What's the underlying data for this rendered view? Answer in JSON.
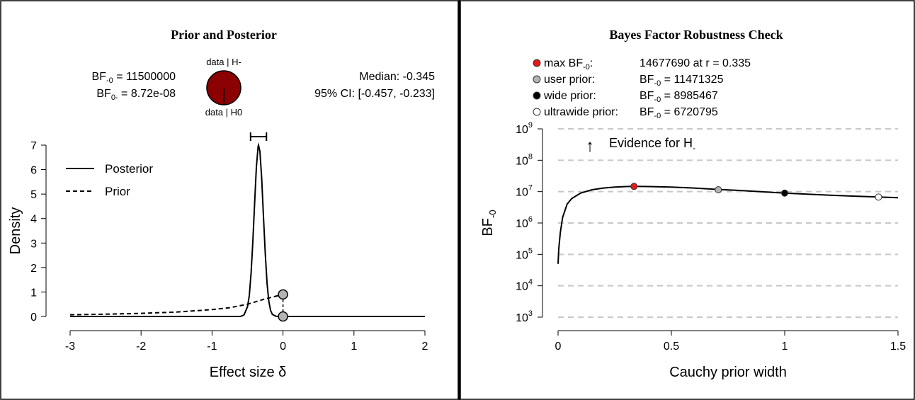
{
  "colors": {
    "posterior_line": "#000000",
    "pie_fill": "#8b0000",
    "max_point": "#e31a1c",
    "user_point": "#b3b3b3",
    "wide_point": "#000000",
    "ultrawide_point": "#ffffff",
    "gridline": "#c8c8c8"
  },
  "left_panel": {
    "title": "Prior and Posterior",
    "bf_line1_prefix": "BF",
    "bf_line1_sub": "-0",
    "bf_line1_value": " = 11500000",
    "bf_line2_prefix": "BF",
    "bf_line2_sub": "0-",
    "bf_line2_value": " = 8.72e-08",
    "pie_top_label": "data | H-",
    "pie_bottom_label": "data | H0",
    "median_text": "Median: -0.345",
    "ci_text": "95% CI: [-0.457, -0.233]",
    "legend_posterior": "Posterior",
    "legend_prior": "Prior"
  },
  "right_panel": {
    "title": "Bayes Factor Robustness Check",
    "legend": [
      {
        "label": "max BF",
        "sub": "-0",
        "colon": ":",
        "value": "14677690 at r = 0.335",
        "value_prefix": "",
        "value_sub": ""
      },
      {
        "label": "user prior:",
        "sub": "",
        "colon": "",
        "value": " = 11471325",
        "value_prefix": "BF",
        "value_sub": "-0"
      },
      {
        "label": "wide prior:",
        "sub": "",
        "colon": "",
        "value": " = 8985467",
        "value_prefix": "BF",
        "value_sub": "-0"
      },
      {
        "label": "ultrawide prior:",
        "sub": "",
        "colon": "",
        "value": " = 6720795",
        "value_prefix": "BF",
        "value_sub": "-0"
      }
    ],
    "evidence_arrow": "↑",
    "evidence_text": "Evidence for H",
    "evidence_sub": "-"
  },
  "chart_data": [
    {
      "type": "line",
      "title": "Prior and Posterior",
      "xlabel": "Effect size δ",
      "ylabel": "Density",
      "xlim": [
        -3,
        2
      ],
      "ylim": [
        0,
        7
      ],
      "xticks": [
        -3,
        -2,
        -1,
        0,
        1,
        2
      ],
      "yticks": [
        0,
        1,
        2,
        3,
        4,
        5,
        6,
        7
      ],
      "grid": false,
      "legend_position": "top-left",
      "posterior_summary": {
        "median": -0.345,
        "ci_low": -0.457,
        "ci_high": -0.233,
        "peak_density": 7.0
      },
      "series": [
        {
          "name": "Posterior",
          "style": "solid",
          "x": [
            -3.0,
            -0.6,
            -0.55,
            -0.5,
            -0.475,
            -0.45,
            -0.425,
            -0.4,
            -0.375,
            -0.35,
            -0.345,
            -0.325,
            -0.3,
            -0.275,
            -0.25,
            -0.225,
            -0.2,
            -0.175,
            -0.15,
            -0.1,
            -0.05,
            0.0,
            2.0
          ],
          "y": [
            0.0,
            0.0,
            0.06,
            0.4,
            0.85,
            1.75,
            3.05,
            4.6,
            6.1,
            6.95,
            7.0,
            6.75,
            5.65,
            4.1,
            2.55,
            1.35,
            0.62,
            0.24,
            0.08,
            0.01,
            0.0,
            0.0,
            0.0
          ]
        },
        {
          "name": "Prior",
          "style": "dashed",
          "x": [
            -3.0,
            -2.5,
            -2.0,
            -1.5,
            -1.0,
            -0.75,
            -0.5,
            -0.25,
            0.0
          ],
          "y": [
            0.068,
            0.093,
            0.126,
            0.18,
            0.28,
            0.36,
            0.5,
            0.72,
            0.9
          ]
        }
      ],
      "points": [
        {
          "x": 0,
          "y": 0.9,
          "fill": "#b3b3b3"
        },
        {
          "x": 0,
          "y": 0.0,
          "fill": "#b3b3b3"
        }
      ],
      "pie": {
        "posterior_prob_h_minus": 1.0,
        "posterior_prob_h0": 0.0
      }
    },
    {
      "type": "line",
      "title": "Bayes Factor Robustness Check",
      "xlabel": "Cauchy prior width",
      "ylabel": "BF-0",
      "xlim": [
        0,
        1.5
      ],
      "ylim": [
        1000,
        1000000000
      ],
      "yscale": "log",
      "xticks": [
        0,
        0.5,
        1,
        1.5
      ],
      "xtick_labels": [
        "0",
        "0.5",
        "1",
        "1.5"
      ],
      "ytick_exponents": [
        3,
        4,
        5,
        6,
        7,
        8,
        9
      ],
      "grid": "horizontal dashed",
      "series": [
        {
          "name": "BF-0",
          "x": [
            0.0,
            0.003,
            0.01,
            0.02,
            0.04,
            0.06,
            0.1,
            0.15,
            0.2,
            0.25,
            0.3,
            0.335,
            0.4,
            0.5,
            0.6,
            0.7,
            0.8,
            0.9,
            1.0,
            1.1,
            1.2,
            1.3,
            1.414,
            1.5
          ],
          "y": [
            50000,
            150000,
            500000,
            1500000,
            4000000,
            6000000,
            9000000,
            11500000,
            13000000,
            14000000,
            14500000,
            14677690,
            14500000,
            14000000,
            13000000,
            11800000,
            10900000,
            9900000,
            9000000,
            8300000,
            7700000,
            7200000,
            6720795,
            6400000
          ]
        }
      ],
      "points": [
        {
          "name": "max BF-0",
          "x": 0.335,
          "y": 14677690,
          "fill": "#e31a1c"
        },
        {
          "name": "user prior",
          "x": 0.707,
          "y": 11471325,
          "fill": "#b3b3b3"
        },
        {
          "name": "wide prior",
          "x": 1.0,
          "y": 8985467,
          "fill": "#000000"
        },
        {
          "name": "ultrawide prior",
          "x": 1.414,
          "y": 6720795,
          "fill": "#ffffff"
        }
      ]
    }
  ]
}
